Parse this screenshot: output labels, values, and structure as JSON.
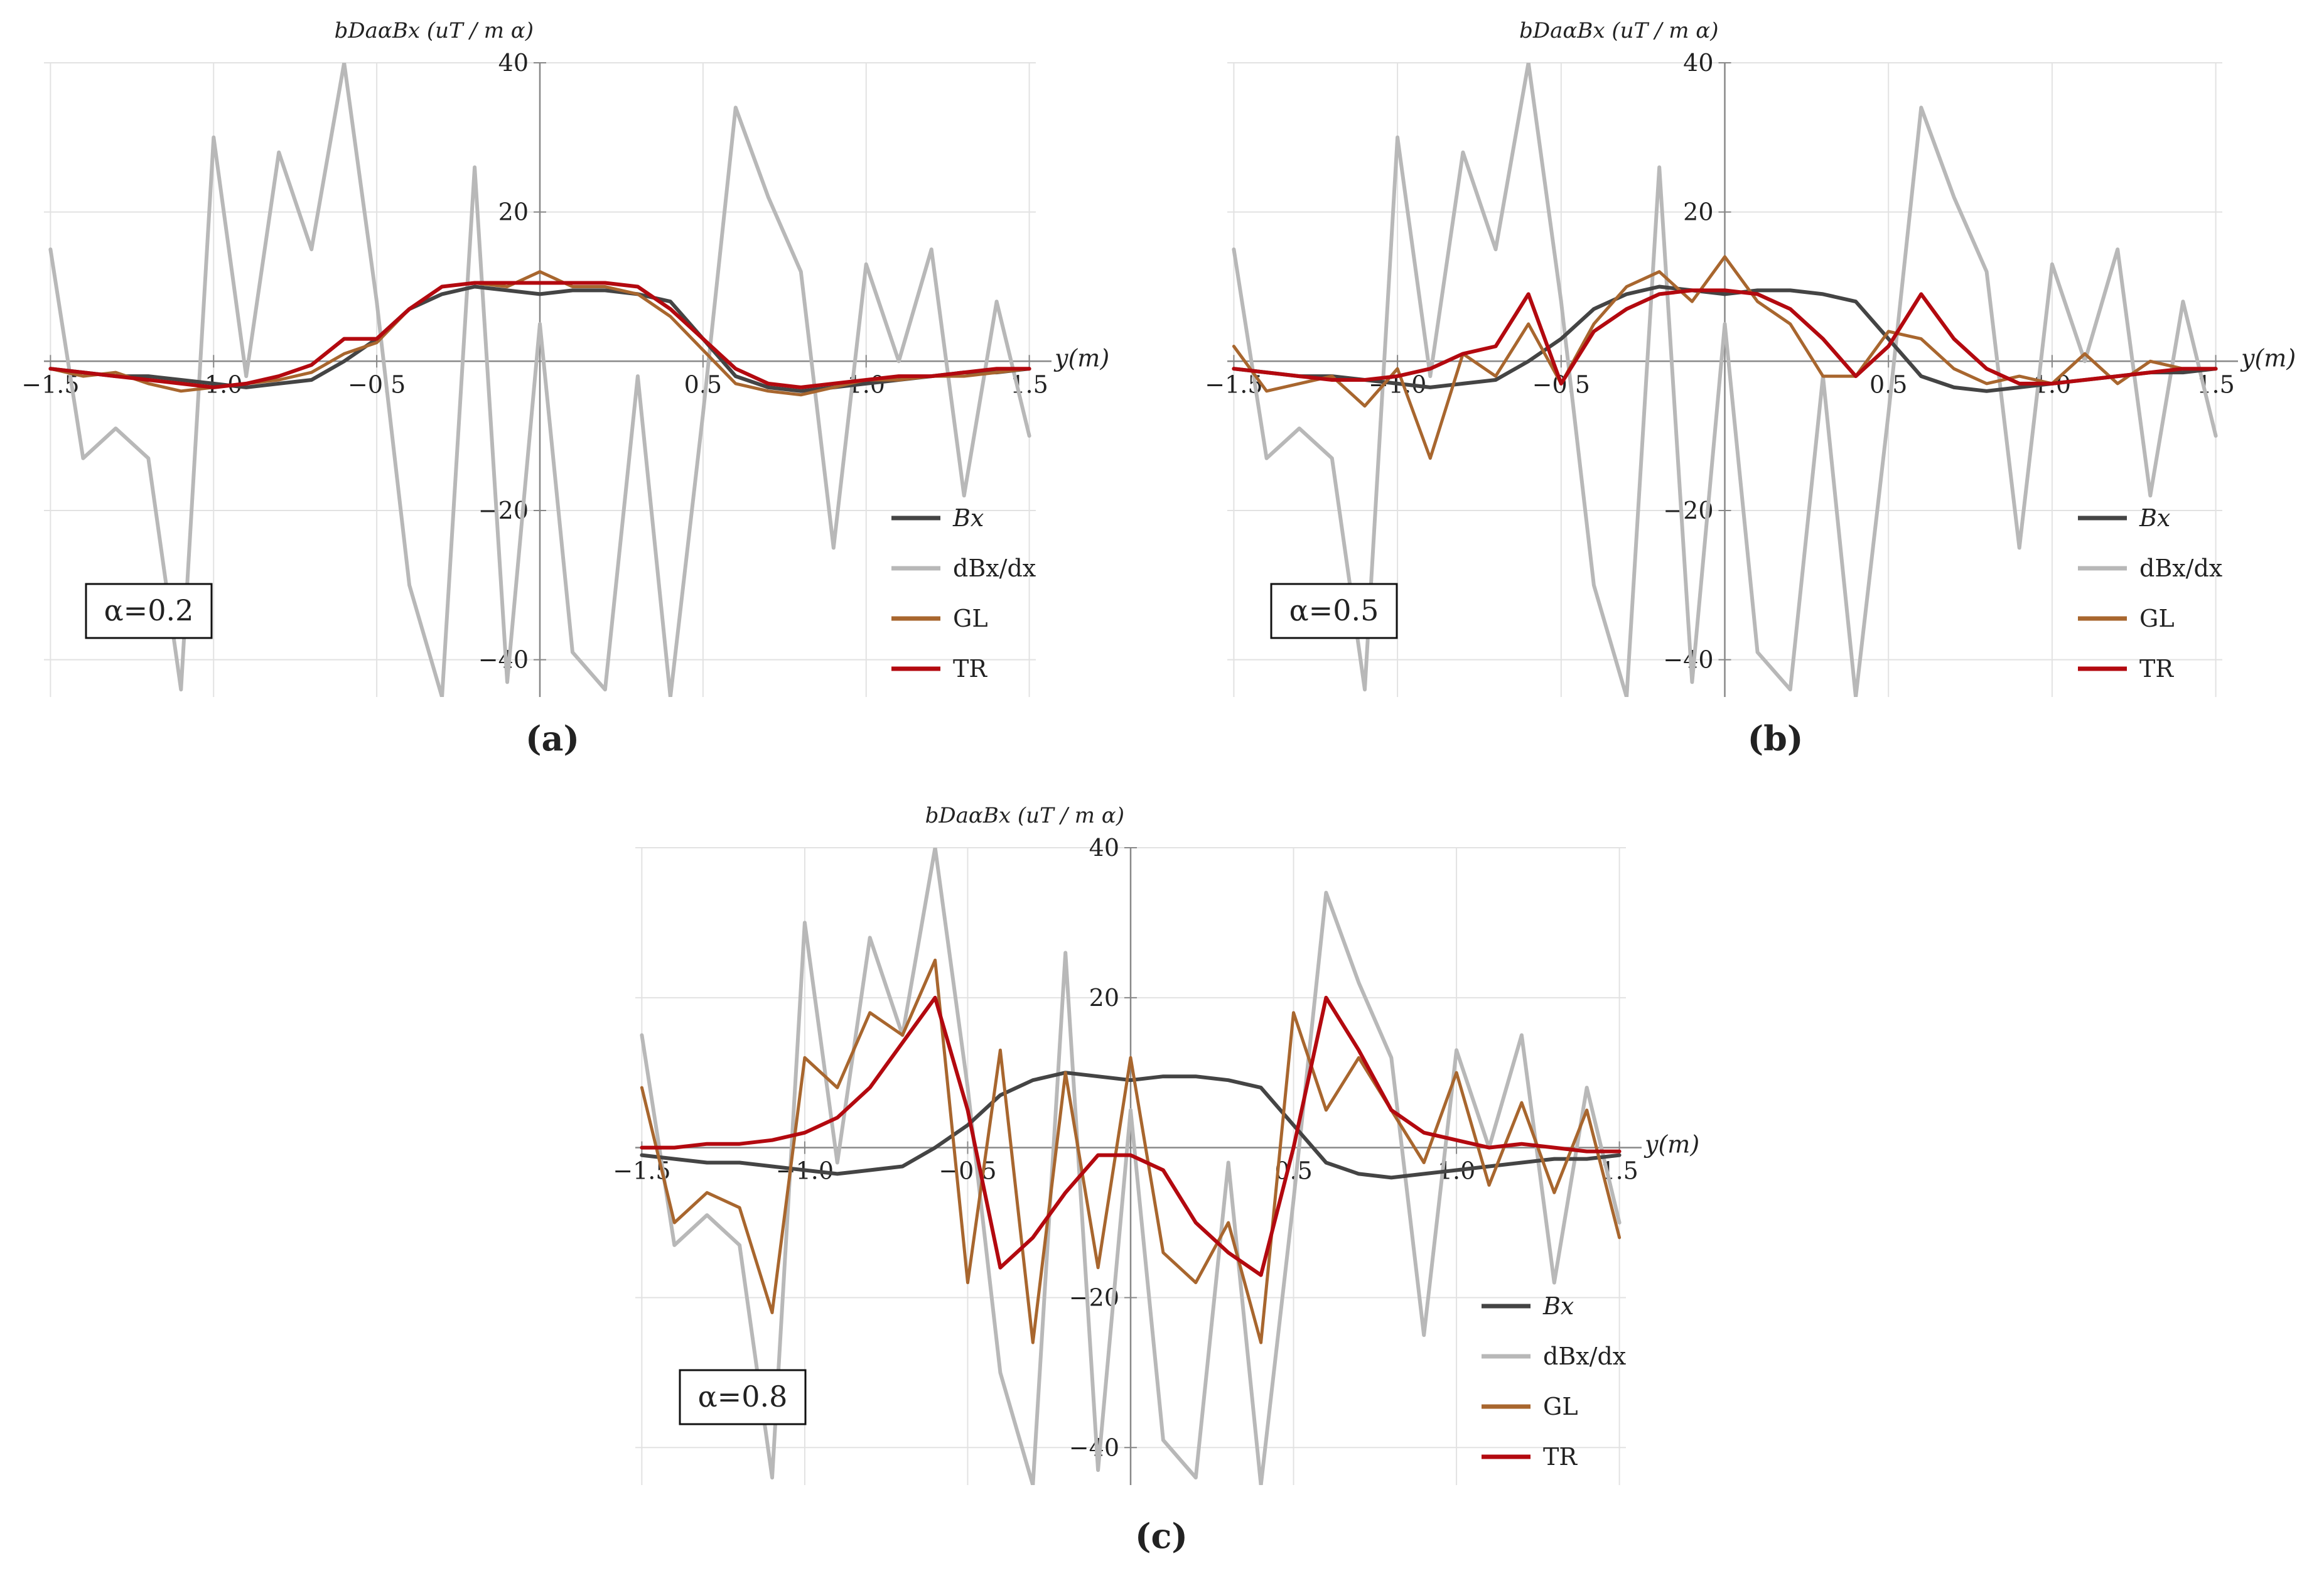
{
  "figure": {
    "panels": [
      "(a)",
      "(b)",
      "(c)"
    ]
  },
  "colors": {
    "Bx": "#444444",
    "dBx": "#b8b8b8",
    "GL": "#a8662e",
    "TR": "#b3090f",
    "grid": "#e2e2e2",
    "axis": "#888888"
  },
  "chart_data": [
    {
      "type": "line",
      "panel_label": "(a)",
      "alpha_label": "α=0.2",
      "title": "",
      "ylabel": "bDaαBx (uT / m α)",
      "xlabel": "y(m)",
      "xlim": [
        -1.52,
        1.52
      ],
      "ylim": [
        -45,
        40
      ],
      "xticks": [
        -1.5,
        -1.0,
        -0.5,
        0.5,
        1.0,
        1.5
      ],
      "xtick_labels": [
        "−1.5",
        "−1.0",
        "−0.5",
        "0.5",
        "1.0",
        "1.5"
      ],
      "yticks": [
        -40,
        -20,
        20,
        40
      ],
      "ytick_labels": [
        "−40",
        "−20",
        "20",
        "40"
      ],
      "legend_position": "bottom-right",
      "x": [
        -1.5,
        -1.4,
        -1.3,
        -1.2,
        -1.1,
        -1.0,
        -0.9,
        -0.8,
        -0.7,
        -0.6,
        -0.5,
        -0.4,
        -0.3,
        -0.2,
        -0.1,
        0.0,
        0.1,
        0.2,
        0.3,
        0.4,
        0.5,
        0.6,
        0.7,
        0.8,
        0.9,
        1.0,
        1.1,
        1.2,
        1.3,
        1.4,
        1.5
      ],
      "series": [
        {
          "name": "Bx",
          "legend": "Bx",
          "values": [
            -1,
            -1.5,
            -2,
            -2,
            -2.5,
            -3,
            -3.5,
            -3,
            -2.5,
            0,
            3,
            7,
            9,
            10,
            9.5,
            9,
            9.5,
            9.5,
            9,
            8,
            3,
            -2,
            -3.5,
            -4,
            -3.5,
            -3,
            -2.5,
            -2,
            -1.5,
            -1.5,
            -1
          ]
        },
        {
          "name": "dBx/dx",
          "legend": "dBx/dx",
          "values": [
            15,
            -13,
            -9,
            -13,
            -44,
            30,
            -2,
            28,
            15,
            40,
            8,
            -30,
            -45,
            26,
            -43,
            5,
            -39,
            -44,
            -2,
            -45,
            -7,
            34,
            22,
            12,
            -25,
            13,
            0,
            15,
            -18,
            8,
            -10
          ]
        },
        {
          "name": "GL",
          "legend": "GL",
          "values": [
            -1,
            -2,
            -1.5,
            -3,
            -4,
            -3.5,
            -3,
            -2.5,
            -1.5,
            1,
            2.5,
            7,
            10,
            10.5,
            10,
            12,
            10,
            10,
            9,
            6,
            1.5,
            -3,
            -4,
            -4.5,
            -3.5,
            -2.5,
            -2.5,
            -2,
            -2,
            -1.5,
            -1
          ]
        },
        {
          "name": "TR",
          "legend": "TR",
          "values": [
            -1,
            -1.5,
            -2,
            -2.5,
            -3,
            -3.5,
            -3,
            -2,
            -0.5,
            3,
            3,
            7,
            10,
            10.5,
            10.5,
            10.5,
            10.5,
            10.5,
            10,
            7,
            3,
            -1,
            -3,
            -3.5,
            -3,
            -2.5,
            -2,
            -2,
            -1.5,
            -1,
            -1
          ]
        }
      ]
    },
    {
      "type": "line",
      "panel_label": "(b)",
      "alpha_label": "α=0.5",
      "title": "",
      "ylabel": "bDaαBx (uT / m α)",
      "xlabel": "y(m)",
      "xlim": [
        -1.52,
        1.52
      ],
      "ylim": [
        -45,
        40
      ],
      "xticks": [
        -1.5,
        -1.0,
        -0.5,
        0.5,
        1.0,
        1.5
      ],
      "xtick_labels": [
        "−1.5",
        "−1.0",
        "−0.5",
        "0.5",
        "1.0",
        "1.5"
      ],
      "yticks": [
        -40,
        -20,
        20,
        40
      ],
      "ytick_labels": [
        "−40",
        "−20",
        "20",
        "40"
      ],
      "legend_position": "bottom-right",
      "x": [
        -1.5,
        -1.4,
        -1.3,
        -1.2,
        -1.1,
        -1.0,
        -0.9,
        -0.8,
        -0.7,
        -0.6,
        -0.5,
        -0.4,
        -0.3,
        -0.2,
        -0.1,
        0.0,
        0.1,
        0.2,
        0.3,
        0.4,
        0.5,
        0.6,
        0.7,
        0.8,
        0.9,
        1.0,
        1.1,
        1.2,
        1.3,
        1.4,
        1.5
      ],
      "series": [
        {
          "name": "Bx",
          "legend": "Bx",
          "values": [
            -1,
            -1.5,
            -2,
            -2,
            -2.5,
            -3,
            -3.5,
            -3,
            -2.5,
            0,
            3,
            7,
            9,
            10,
            9.5,
            9,
            9.5,
            9.5,
            9,
            8,
            3,
            -2,
            -3.5,
            -4,
            -3.5,
            -3,
            -2.5,
            -2,
            -1.5,
            -1.5,
            -1
          ]
        },
        {
          "name": "dBx/dx",
          "legend": "dBx/dx",
          "values": [
            15,
            -13,
            -9,
            -13,
            -44,
            30,
            -2,
            28,
            15,
            40,
            8,
            -30,
            -45,
            26,
            -43,
            5,
            -39,
            -44,
            -2,
            -45,
            -7,
            34,
            22,
            12,
            -25,
            13,
            0,
            15,
            -18,
            8,
            -10
          ]
        },
        {
          "name": "GL",
          "legend": "GL",
          "values": [
            2,
            -4,
            -3,
            -2,
            -6,
            -1,
            -13,
            1,
            -2,
            5,
            -3,
            5,
            10,
            12,
            8,
            14,
            8,
            5,
            -2,
            -2,
            4,
            3,
            -1,
            -3,
            -2,
            -3,
            1,
            -3,
            0,
            -1,
            -1
          ]
        },
        {
          "name": "TR",
          "legend": "TR",
          "values": [
            -1,
            -1.5,
            -2,
            -2.5,
            -2.5,
            -2,
            -1,
            1,
            2,
            9,
            -3,
            4,
            7,
            9,
            9.5,
            9.5,
            9,
            7,
            3,
            -2,
            2,
            9,
            3,
            -1,
            -3,
            -3,
            -2.5,
            -2,
            -1.5,
            -1,
            -1
          ]
        }
      ]
    },
    {
      "type": "line",
      "panel_label": "(c)",
      "alpha_label": "α=0.8",
      "title": "",
      "ylabel": "bDaαBx (uT / m α)",
      "xlabel": "y(m)",
      "xlim": [
        -1.52,
        1.52
      ],
      "ylim": [
        -45,
        40
      ],
      "xticks": [
        -1.5,
        -1.0,
        -0.5,
        0.5,
        1.0,
        1.5
      ],
      "xtick_labels": [
        "−1.5",
        "−1.0",
        "−0.5",
        "0.5",
        "1.0",
        "1.5"
      ],
      "yticks": [
        -40,
        -20,
        20,
        40
      ],
      "ytick_labels": [
        "−40",
        "−20",
        "20",
        "40"
      ],
      "legend_position": "bottom-right",
      "x": [
        -1.5,
        -1.4,
        -1.3,
        -1.2,
        -1.1,
        -1.0,
        -0.9,
        -0.8,
        -0.7,
        -0.6,
        -0.5,
        -0.4,
        -0.3,
        -0.2,
        -0.1,
        0.0,
        0.1,
        0.2,
        0.3,
        0.4,
        0.5,
        0.6,
        0.7,
        0.8,
        0.9,
        1.0,
        1.1,
        1.2,
        1.3,
        1.4,
        1.5
      ],
      "series": [
        {
          "name": "Bx",
          "legend": "Bx",
          "values": [
            -1,
            -1.5,
            -2,
            -2,
            -2.5,
            -3,
            -3.5,
            -3,
            -2.5,
            0,
            3,
            7,
            9,
            10,
            9.5,
            9,
            9.5,
            9.5,
            9,
            8,
            3,
            -2,
            -3.5,
            -4,
            -3.5,
            -3,
            -2.5,
            -2,
            -1.5,
            -1.5,
            -1
          ]
        },
        {
          "name": "dBx/dx",
          "legend": "dBx/dx",
          "values": [
            15,
            -13,
            -9,
            -13,
            -44,
            30,
            -2,
            28,
            15,
            40,
            8,
            -30,
            -45,
            26,
            -43,
            5,
            -39,
            -44,
            -2,
            -45,
            -7,
            34,
            22,
            12,
            -25,
            13,
            0,
            15,
            -18,
            8,
            -10
          ]
        },
        {
          "name": "GL",
          "legend": "GL",
          "values": [
            8,
            -10,
            -6,
            -8,
            -22,
            12,
            8,
            18,
            15,
            25,
            -18,
            13,
            -26,
            10,
            -16,
            12,
            -14,
            -18,
            -10,
            -26,
            18,
            5,
            12,
            5,
            -2,
            10,
            -5,
            6,
            -6,
            5,
            -12
          ]
        },
        {
          "name": "TR",
          "legend": "TR",
          "values": [
            0,
            0,
            0.5,
            0.5,
            1,
            2,
            4,
            8,
            14,
            20,
            5,
            -16,
            -12,
            -6,
            -1,
            -1,
            -3,
            -10,
            -14,
            -17,
            0,
            20,
            13,
            5,
            2,
            1,
            0,
            0.5,
            0,
            -0.5,
            -0.5
          ]
        }
      ]
    }
  ]
}
